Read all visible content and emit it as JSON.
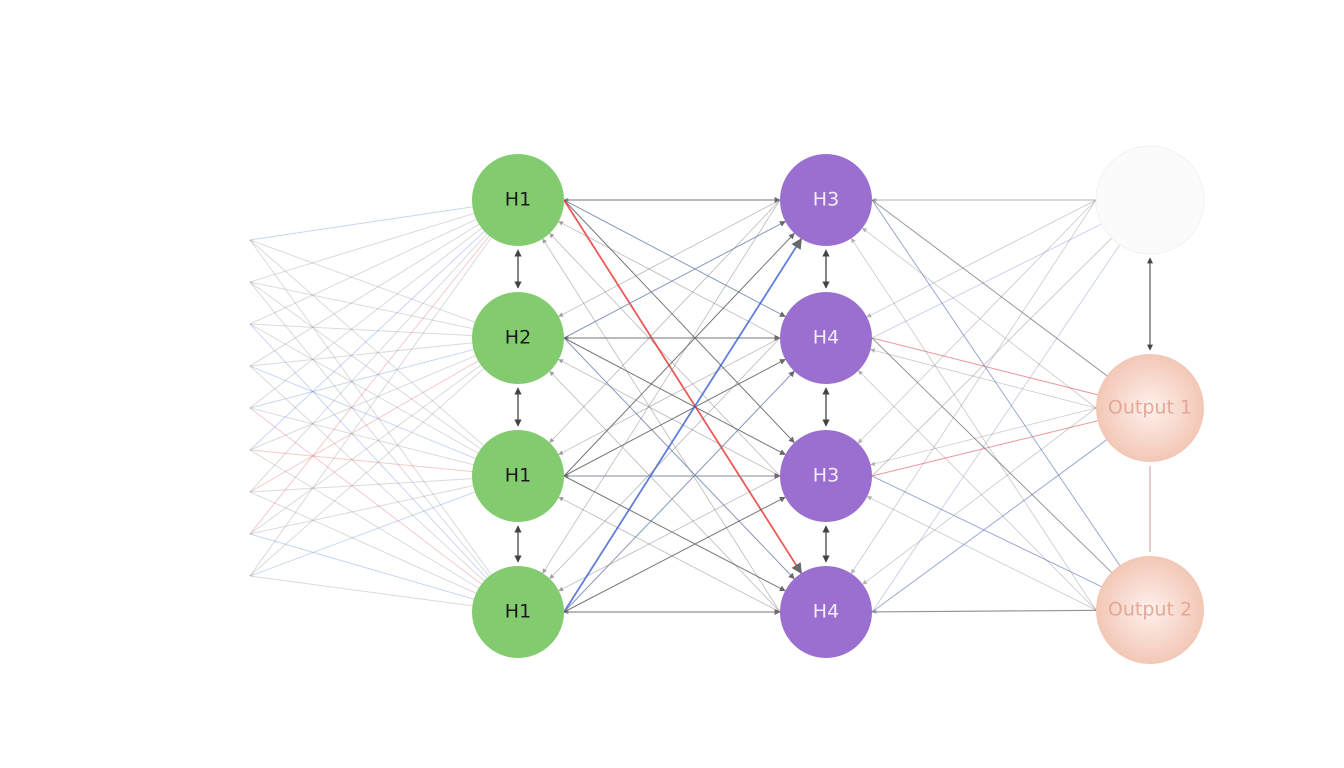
{
  "hidden_layer_1": {
    "nodes": [
      "H1",
      "H2",
      "H1",
      "H1"
    ]
  },
  "hidden_layer_2": {
    "nodes": [
      "H3",
      "H4",
      "H3",
      "H4"
    ]
  },
  "output_layer": {
    "nodes": [
      "Output 1",
      "Output 2"
    ]
  }
}
